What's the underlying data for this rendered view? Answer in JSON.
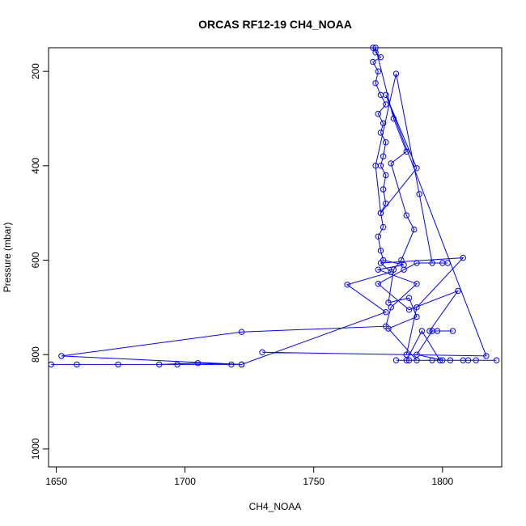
{
  "chart_data": {
    "type": "line",
    "title": "ORCAS RF12-19 CH4_NOAA",
    "xlabel": "CH4_NOAA",
    "ylabel": "Pressure (mbar)",
    "xlim": [
      1647,
      1823
    ],
    "ylim": [
      1038,
      150
    ],
    "y_inverted": true,
    "x_ticks": [
      1650,
      1700,
      1750,
      1800
    ],
    "y_ticks": [
      200,
      400,
      600,
      800,
      1000
    ],
    "grid": false,
    "series": [
      {
        "color": "#0000ff",
        "marker": "open-circle",
        "points": [
          [
            1773,
            150
          ],
          [
            1774,
            160
          ],
          [
            1776,
            170
          ],
          [
            1773,
            180
          ],
          [
            1775,
            200
          ],
          [
            1774,
            225
          ],
          [
            1776,
            250
          ],
          [
            1778,
            270
          ],
          [
            1775,
            290
          ],
          [
            1777,
            310
          ],
          [
            1776,
            330
          ],
          [
            1778,
            350
          ],
          [
            1777,
            380
          ],
          [
            1776,
            400
          ],
          [
            1778,
            420
          ],
          [
            1777,
            450
          ],
          [
            1778,
            480
          ],
          [
            1776,
            500
          ],
          [
            1777,
            530
          ],
          [
            1775,
            550
          ],
          [
            1776,
            580
          ],
          [
            1777,
            600
          ],
          [
            1785,
            610
          ],
          [
            1775,
            620
          ],
          [
            1790,
            650
          ],
          [
            1780,
            700
          ],
          [
            1778,
            740
          ],
          [
            1722,
            752
          ],
          [
            1652,
            803
          ],
          [
            1722,
            821
          ],
          [
            1648,
            821
          ],
          [
            1718,
            821
          ],
          [
            1705,
            818
          ],
          [
            1690,
            821
          ],
          [
            1674,
            821
          ],
          [
            1658,
            821
          ],
          [
            1697,
            821
          ],
          [
            1722,
            821
          ],
          [
            1778,
            710
          ],
          [
            1763,
            652
          ],
          [
            1780,
            625
          ],
          [
            1776,
            606
          ],
          [
            1808,
            595
          ],
          [
            1790,
            700
          ],
          [
            1786,
            800
          ],
          [
            1730,
            795
          ],
          [
            1817,
            803
          ],
          [
            1778,
            250
          ],
          [
            1790,
            405
          ],
          [
            1776,
            500
          ],
          [
            1774,
            400
          ],
          [
            1782,
            205
          ],
          [
            1791,
            460
          ],
          [
            1796,
            606
          ],
          [
            1800,
            606
          ],
          [
            1802,
            606
          ],
          [
            1790,
            606
          ],
          [
            1785,
            620
          ],
          [
            1775,
            650
          ],
          [
            1787,
            705
          ],
          [
            1806,
            665
          ],
          [
            1795,
            750
          ],
          [
            1804,
            750
          ],
          [
            1798,
            750
          ],
          [
            1796,
            750
          ],
          [
            1790,
            800
          ],
          [
            1800,
            812
          ],
          [
            1782,
            812
          ],
          [
            1787,
            812
          ],
          [
            1796,
            812
          ],
          [
            1803,
            812
          ],
          [
            1810,
            812
          ],
          [
            1813,
            812
          ],
          [
            1821,
            812
          ],
          [
            1808,
            812
          ],
          [
            1799,
            812
          ],
          [
            1792,
            750
          ],
          [
            1786,
            812
          ],
          [
            1790,
            812
          ],
          [
            1779,
            745
          ],
          [
            1790,
            720
          ],
          [
            1787,
            680
          ],
          [
            1779,
            690
          ],
          [
            1781,
            620
          ],
          [
            1784,
            600
          ],
          [
            1789,
            535
          ],
          [
            1786,
            505
          ],
          [
            1780,
            395
          ],
          [
            1786,
            370
          ],
          [
            1781,
            300
          ],
          [
            1774,
            150
          ]
        ]
      }
    ]
  }
}
